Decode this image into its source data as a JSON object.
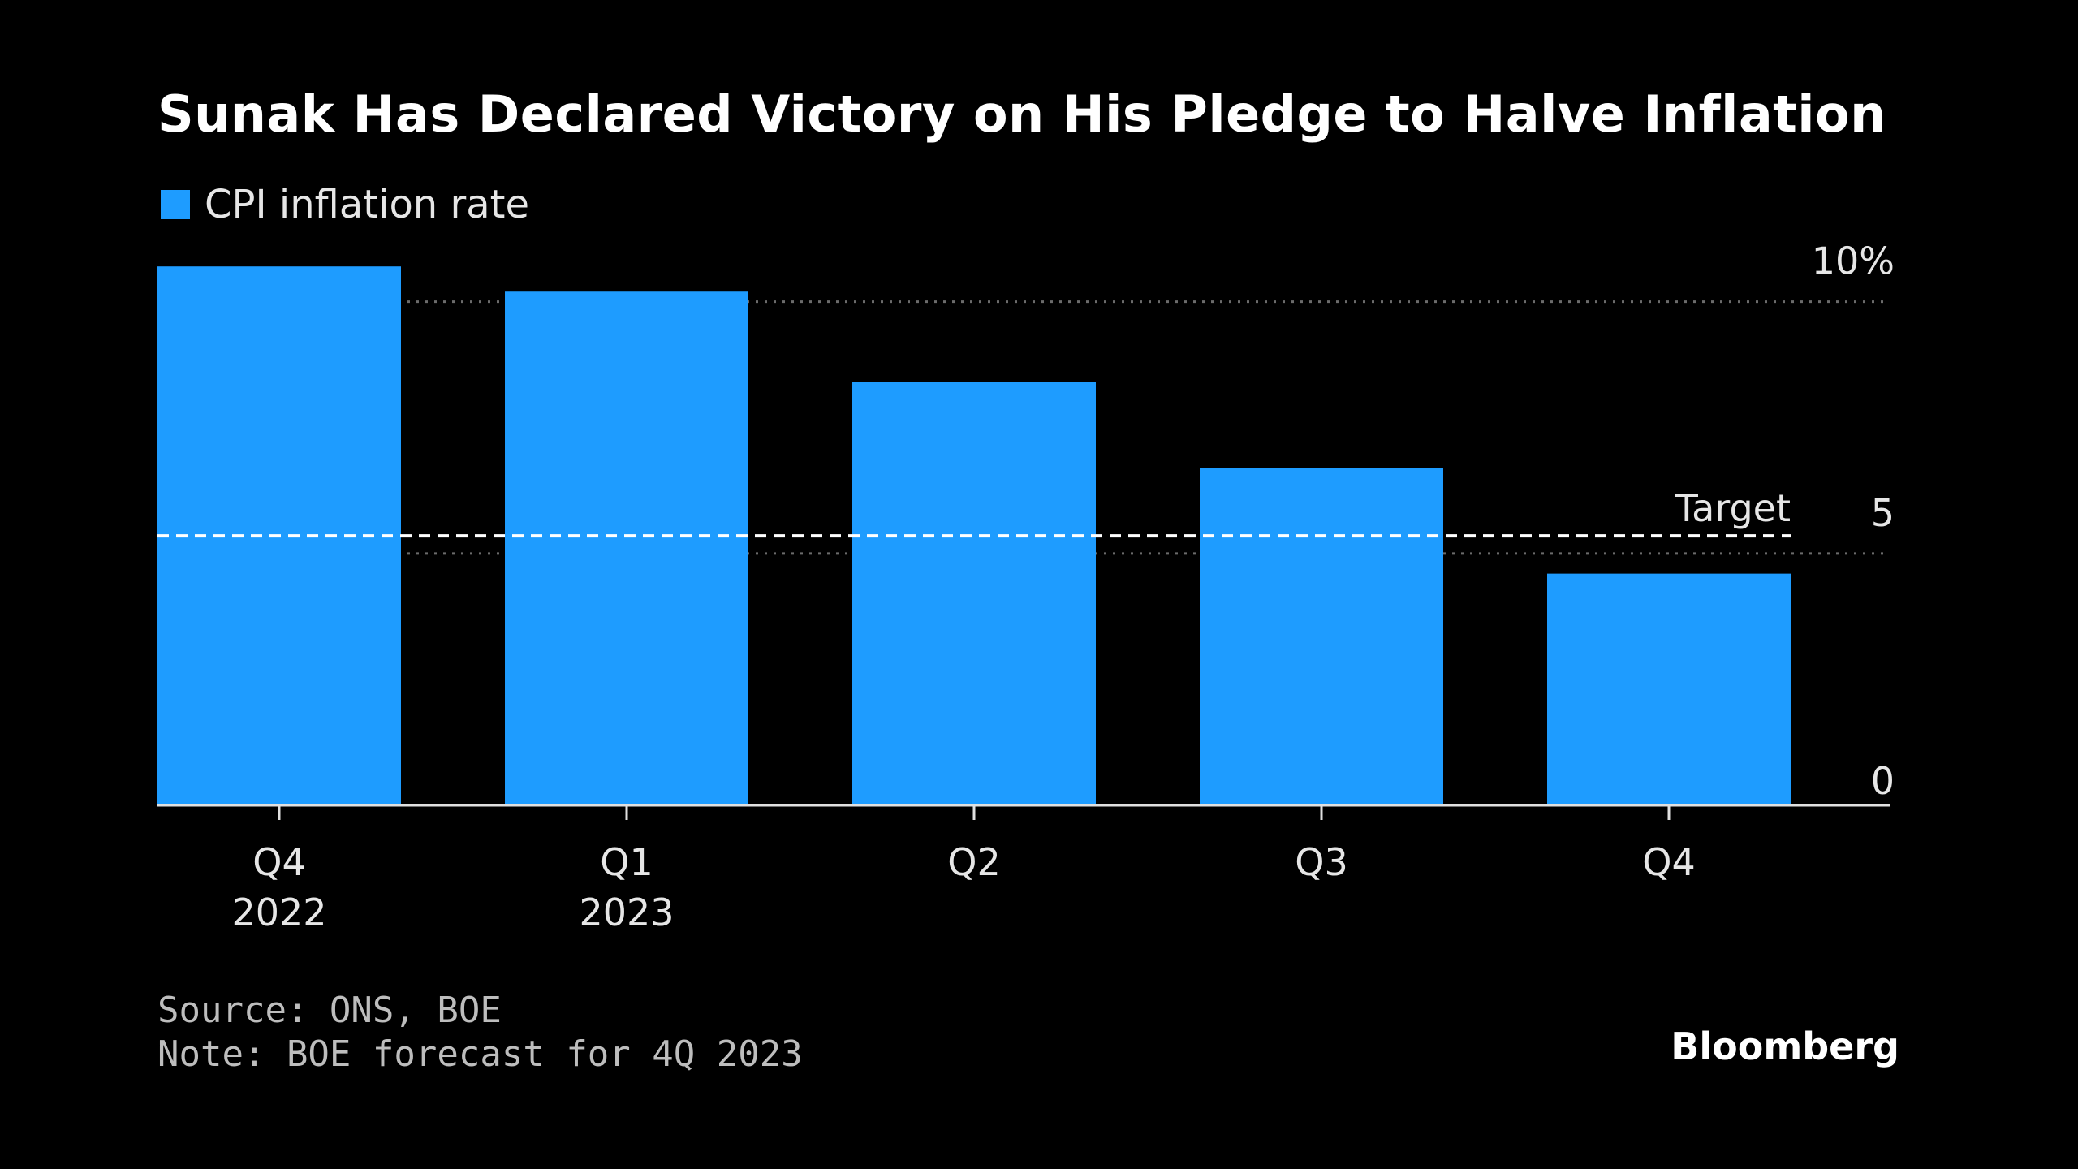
{
  "colors": {
    "background": "#000000",
    "bar": "#1e9cff",
    "text": "#ffffff",
    "muted": "#bdbdbd",
    "gridline": "#6b6b6b"
  },
  "branding": "Bloomberg",
  "footer": {
    "source": "Source: ONS, BOE",
    "note": "Note: BOE forecast for 4Q 2023"
  },
  "chart_data": {
    "type": "bar",
    "title": "Sunak Has Declared Victory on His Pledge to Halve Inflation",
    "xlabel": "",
    "ylabel": "",
    "legend": {
      "position": "top-left",
      "entries": [
        "CPI inflation rate"
      ]
    },
    "categories": [
      "Q4 2022",
      "Q1 2023",
      "Q2",
      "Q3",
      "Q4"
    ],
    "category_labels": [
      {
        "line1": "Q4",
        "line2": "2022"
      },
      {
        "line1": "Q1",
        "line2": "2023"
      },
      {
        "line1": "Q2",
        "line2": ""
      },
      {
        "line1": "Q3",
        "line2": ""
      },
      {
        "line1": "Q4",
        "line2": ""
      }
    ],
    "series": [
      {
        "name": "CPI inflation rate",
        "values": [
          10.7,
          10.2,
          8.4,
          6.7,
          4.6
        ]
      }
    ],
    "reference_line": {
      "label": "Target",
      "value": 5.35
    },
    "yaxis": {
      "position": "right",
      "ticks": [
        {
          "value": 0,
          "label": "0"
        },
        {
          "value": 5,
          "label": "5"
        },
        {
          "value": 10,
          "label": "10%"
        }
      ]
    },
    "ylim": [
      0,
      10.8
    ],
    "grid": true
  }
}
